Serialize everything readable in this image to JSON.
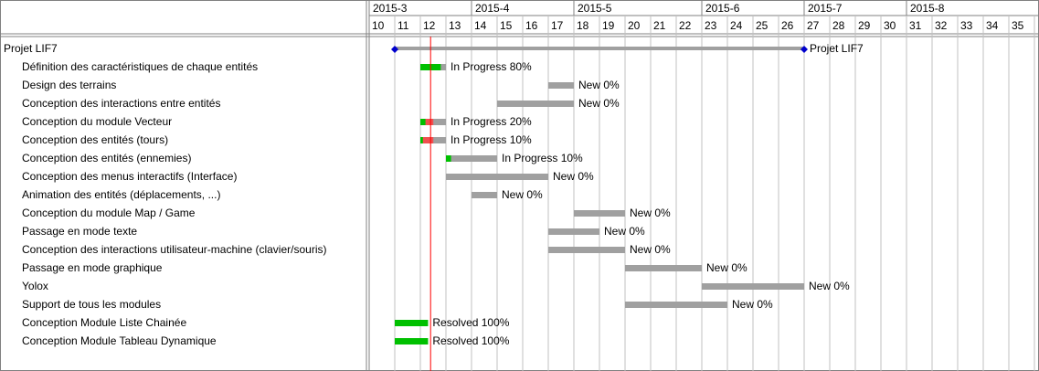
{
  "chart_data": {
    "type": "gantt",
    "title": "",
    "months": [
      {
        "label": "2015-3",
        "start_week": 10,
        "end_week": 14
      },
      {
        "label": "2015-4",
        "start_week": 14,
        "end_week": 18
      },
      {
        "label": "2015-5",
        "start_week": 18,
        "end_week": 23
      },
      {
        "label": "2015-6",
        "start_week": 23,
        "end_week": 27
      },
      {
        "label": "2015-7",
        "start_week": 27,
        "end_week": 31
      },
      {
        "label": "2015-8",
        "start_week": 31,
        "end_week": 36
      }
    ],
    "weeks": [
      "10",
      "11",
      "12",
      "13",
      "14",
      "15",
      "16",
      "17",
      "18",
      "19",
      "20",
      "21",
      "22",
      "23",
      "24",
      "25",
      "26",
      "27",
      "28",
      "29",
      "30",
      "31",
      "32",
      "33",
      "34",
      "35"
    ],
    "today_week": 12.4,
    "project": {
      "name": "Projet LIF7",
      "start_week": 11,
      "end_week": 27,
      "end_label": "Projet LIF7"
    },
    "tasks": [
      {
        "name": "Définition des caractéristiques de chaque entités",
        "start": 12,
        "end": 13,
        "status": "In Progress",
        "progress": 80,
        "label": "In Progress 80%"
      },
      {
        "name": "Design des terrains",
        "start": 17,
        "end": 18,
        "status": "New",
        "progress": 0,
        "label": "New 0%"
      },
      {
        "name": "Conception des interactions entre entités",
        "start": 15,
        "end": 18,
        "status": "New",
        "progress": 0,
        "label": "New 0%"
      },
      {
        "name": "Conception du module Vecteur",
        "start": 12,
        "end": 13,
        "status": "In Progress",
        "progress": 20,
        "late": true,
        "label": "In Progress 20%"
      },
      {
        "name": "Conception des entités (tours)",
        "start": 12,
        "end": 13,
        "status": "In Progress",
        "progress": 10,
        "late": true,
        "label": "In Progress 10%"
      },
      {
        "name": "Conception des entités (ennemies)",
        "start": 13,
        "end": 15,
        "status": "In Progress",
        "progress": 10,
        "label": "In Progress 10%"
      },
      {
        "name": "Conception des menus interactifs (Interface)",
        "start": 13,
        "end": 17,
        "status": "New",
        "progress": 0,
        "label": "New 0%"
      },
      {
        "name": "Animation des entités (déplacements, ...)",
        "start": 14,
        "end": 15,
        "status": "New",
        "progress": 0,
        "label": "New 0%"
      },
      {
        "name": "Conception du module Map / Game",
        "start": 18,
        "end": 20,
        "status": "New",
        "progress": 0,
        "label": "New 0%"
      },
      {
        "name": "Passage en mode texte",
        "start": 17,
        "end": 19,
        "status": "New",
        "progress": 0,
        "label": "New 0%"
      },
      {
        "name": "Conception des interactions utilisateur-machine (clavier/souris)",
        "start": 17,
        "end": 20,
        "status": "New",
        "progress": 0,
        "label": "New 0%"
      },
      {
        "name": "Passage en mode graphique",
        "start": 20,
        "end": 23,
        "status": "New",
        "progress": 0,
        "label": "New 0%"
      },
      {
        "name": "Yolox",
        "start": 23,
        "end": 27,
        "status": "New",
        "progress": 0,
        "label": "New 0%"
      },
      {
        "name": "Support de tous les modules",
        "start": 20,
        "end": 24,
        "status": "New",
        "progress": 0,
        "label": "New 0%"
      },
      {
        "name": "Conception Module Liste Chainée",
        "start": 11,
        "end": 12.3,
        "status": "Resolved",
        "progress": 100,
        "label": "Resolved 100%"
      },
      {
        "name": "Conception Module Tableau Dynamique",
        "start": 11,
        "end": 12.3,
        "status": "Resolved",
        "progress": 100,
        "label": "Resolved 100%"
      }
    ],
    "colors": {
      "done": "#00c000",
      "late": "#f05050",
      "todo": "#a0a0a0",
      "today": "#ff0000",
      "milestone": "#0000cc",
      "grid": "#c0c0c0",
      "border": "#000000"
    }
  }
}
